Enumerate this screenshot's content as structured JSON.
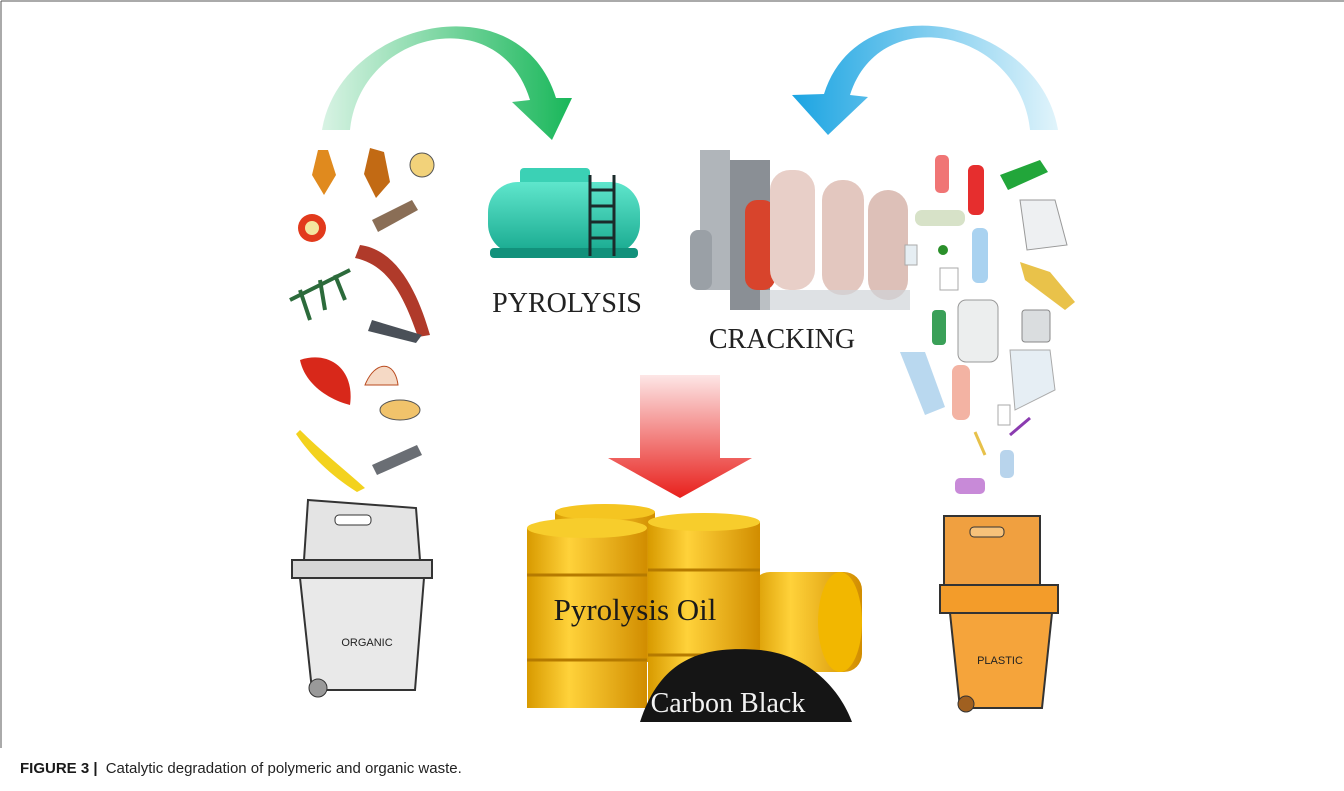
{
  "figure": {
    "labels": {
      "pyrolysis": "PYROLYSIS",
      "cracking": "CRACKING",
      "pyrolysis_oil": "Pyrolysis Oil",
      "carbon_black": "Carbon Black",
      "organic_bin": "ORGANIC",
      "plastic_bin": "PLASTIC"
    },
    "caption": {
      "label": "FIGURE 3 |",
      "text": "Catalytic degradation of polymeric and organic waste."
    }
  }
}
